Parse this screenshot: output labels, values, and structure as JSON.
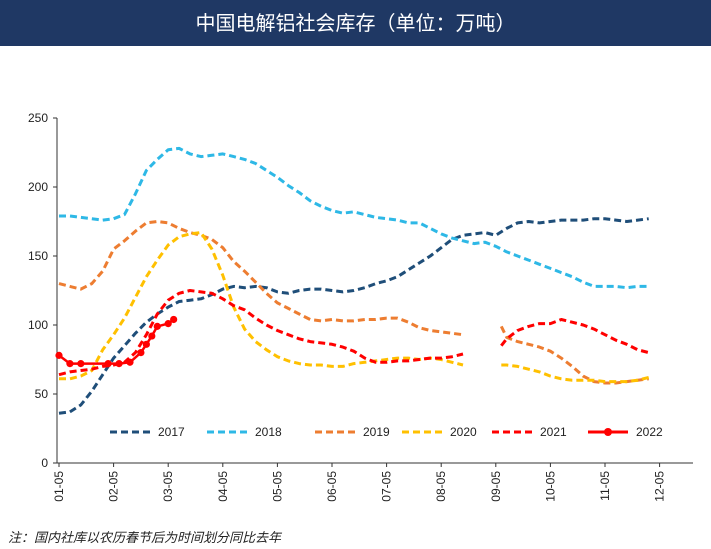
{
  "title": "中国电解铝社会库存（单位：万吨）",
  "note": "注：国内社库以农历春节后为时间划分同比去年",
  "colors": {
    "header_bg": "#1f3864"
  },
  "chart_data": {
    "type": "line",
    "title": "中国电解铝社会库存（单位：万吨）",
    "xlabel": "",
    "ylabel": "",
    "ylim": [
      0,
      250
    ],
    "yticks": [
      0,
      50,
      100,
      150,
      200,
      250
    ],
    "x_tick_labels": [
      "01-05",
      "02-05",
      "03-05",
      "04-05",
      "05-05",
      "06-05",
      "07-05",
      "08-05",
      "09-05",
      "10-05",
      "11-05",
      "12-05"
    ],
    "grid": false,
    "legend_position": "bottom-inside",
    "series": [
      {
        "name": "2017",
        "color": "#1f4e79",
        "style": "dashed",
        "points": [
          [
            0,
            36
          ],
          [
            0.2,
            37
          ],
          [
            0.4,
            42
          ],
          [
            0.6,
            52
          ],
          [
            0.8,
            64
          ],
          [
            1.0,
            76
          ],
          [
            1.2,
            85
          ],
          [
            1.4,
            94
          ],
          [
            1.6,
            102
          ],
          [
            1.8,
            108
          ],
          [
            2.0,
            113
          ],
          [
            2.2,
            117
          ],
          [
            2.4,
            118
          ],
          [
            2.6,
            119
          ],
          [
            2.8,
            122
          ],
          [
            3.0,
            126
          ],
          [
            3.2,
            128
          ],
          [
            3.4,
            127
          ],
          [
            3.6,
            128
          ],
          [
            3.8,
            127
          ],
          [
            4.0,
            124
          ],
          [
            4.2,
            123
          ],
          [
            4.4,
            125
          ],
          [
            4.6,
            126
          ],
          [
            4.8,
            126
          ],
          [
            5.0,
            125
          ],
          [
            5.2,
            124
          ],
          [
            5.4,
            125
          ],
          [
            5.6,
            127
          ],
          [
            5.8,
            130
          ],
          [
            6.0,
            132
          ],
          [
            6.2,
            135
          ],
          [
            6.4,
            140
          ],
          [
            6.6,
            145
          ],
          [
            6.8,
            150
          ],
          [
            7.0,
            156
          ],
          [
            7.2,
            162
          ],
          [
            7.4,
            165
          ],
          [
            7.6,
            166
          ],
          [
            7.8,
            167
          ],
          [
            8.0,
            165
          ],
          [
            8.2,
            170
          ],
          [
            8.4,
            174
          ],
          [
            8.6,
            175
          ],
          [
            8.8,
            174
          ],
          [
            9.0,
            175
          ],
          [
            9.2,
            176
          ],
          [
            9.4,
            176
          ],
          [
            9.6,
            176
          ],
          [
            9.8,
            177
          ],
          [
            10.0,
            177
          ],
          [
            10.2,
            176
          ],
          [
            10.4,
            175
          ],
          [
            10.6,
            176
          ],
          [
            10.8,
            177
          ]
        ]
      },
      {
        "name": "2018",
        "color": "#2eb8e6",
        "style": "dashed",
        "points": [
          [
            0,
            179
          ],
          [
            0.2,
            179
          ],
          [
            0.4,
            178
          ],
          [
            0.6,
            177
          ],
          [
            0.8,
            176
          ],
          [
            1.0,
            177
          ],
          [
            1.2,
            180
          ],
          [
            1.4,
            195
          ],
          [
            1.6,
            212
          ],
          [
            1.8,
            220
          ],
          [
            2.0,
            227
          ],
          [
            2.2,
            228
          ],
          [
            2.4,
            224
          ],
          [
            2.6,
            222
          ],
          [
            2.8,
            223
          ],
          [
            3.0,
            224
          ],
          [
            3.2,
            222
          ],
          [
            3.4,
            220
          ],
          [
            3.6,
            217
          ],
          [
            3.8,
            212
          ],
          [
            4.0,
            207
          ],
          [
            4.2,
            201
          ],
          [
            4.4,
            196
          ],
          [
            4.6,
            190
          ],
          [
            4.8,
            186
          ],
          [
            5.0,
            183
          ],
          [
            5.2,
            181
          ],
          [
            5.4,
            182
          ],
          [
            5.6,
            180
          ],
          [
            5.8,
            178
          ],
          [
            6.0,
            177
          ],
          [
            6.2,
            176
          ],
          [
            6.4,
            174
          ],
          [
            6.6,
            174
          ],
          [
            6.8,
            170
          ],
          [
            7.0,
            166
          ],
          [
            7.2,
            163
          ],
          [
            7.4,
            161
          ],
          [
            7.6,
            159
          ],
          [
            7.8,
            160
          ],
          [
            8.0,
            157
          ],
          [
            8.2,
            153
          ],
          [
            8.4,
            150
          ],
          [
            8.6,
            147
          ],
          [
            8.8,
            144
          ],
          [
            9.0,
            141
          ],
          [
            9.2,
            138
          ],
          [
            9.4,
            135
          ],
          [
            9.6,
            131
          ],
          [
            9.8,
            128
          ],
          [
            10.0,
            128
          ],
          [
            10.2,
            128
          ],
          [
            10.4,
            127
          ],
          [
            10.6,
            128
          ],
          [
            10.8,
            128
          ]
        ]
      },
      {
        "name": "2019",
        "color": "#ed7d31",
        "style": "dashed",
        "segments": [
          [
            [
              0,
              130
            ],
            [
              0.2,
              128
            ],
            [
              0.4,
              126
            ],
            [
              0.6,
              130
            ],
            [
              0.8,
              139
            ],
            [
              1.0,
              155
            ],
            [
              1.2,
              161
            ],
            [
              1.4,
              168
            ],
            [
              1.6,
              174
            ],
            [
              1.8,
              175
            ],
            [
              2.0,
              174
            ],
            [
              2.2,
              170
            ],
            [
              2.4,
              167
            ],
            [
              2.6,
              165
            ],
            [
              2.8,
              162
            ],
            [
              3.0,
              156
            ],
            [
              3.2,
              146
            ],
            [
              3.4,
              139
            ],
            [
              3.6,
              131
            ],
            [
              3.8,
              123
            ],
            [
              4.0,
              116
            ],
            [
              4.2,
              112
            ],
            [
              4.4,
              108
            ],
            [
              4.6,
              104
            ],
            [
              4.8,
              103
            ],
            [
              5.0,
              104
            ],
            [
              5.2,
              103
            ],
            [
              5.4,
              103
            ],
            [
              5.6,
              104
            ],
            [
              5.8,
              104
            ],
            [
              6.0,
              105
            ],
            [
              6.2,
              105
            ],
            [
              6.4,
              102
            ],
            [
              6.6,
              98
            ],
            [
              6.8,
              96
            ],
            [
              7.0,
              95
            ],
            [
              7.2,
              94
            ],
            [
              7.4,
              93
            ]
          ],
          [
            [
              8.1,
              99
            ],
            [
              8.2,
              91
            ],
            [
              8.4,
              88
            ],
            [
              8.6,
              86
            ],
            [
              8.8,
              84
            ],
            [
              9.0,
              81
            ],
            [
              9.2,
              76
            ],
            [
              9.4,
              70
            ],
            [
              9.6,
              63
            ],
            [
              9.8,
              59
            ],
            [
              10.0,
              58
            ],
            [
              10.2,
              58
            ],
            [
              10.4,
              59
            ],
            [
              10.6,
              60
            ],
            [
              10.8,
              61
            ]
          ]
        ]
      },
      {
        "name": "2020",
        "color": "#ffc000",
        "style": "dashed",
        "segments": [
          [
            [
              0,
              61
            ],
            [
              0.2,
              61
            ],
            [
              0.4,
              63
            ],
            [
              0.6,
              67
            ],
            [
              0.8,
              82
            ],
            [
              1.0,
              93
            ],
            [
              1.2,
              105
            ],
            [
              1.4,
              120
            ],
            [
              1.6,
              135
            ],
            [
              1.8,
              147
            ],
            [
              2.0,
              158
            ],
            [
              2.2,
              164
            ],
            [
              2.4,
              166
            ],
            [
              2.6,
              167
            ],
            [
              2.8,
              155
            ],
            [
              3.0,
              136
            ],
            [
              3.2,
              113
            ],
            [
              3.4,
              97
            ],
            [
              3.6,
              88
            ],
            [
              3.8,
              82
            ],
            [
              4.0,
              77
            ],
            [
              4.2,
              74
            ],
            [
              4.4,
              72
            ],
            [
              4.6,
              71
            ],
            [
              4.8,
              71
            ],
            [
              5.0,
              70
            ],
            [
              5.2,
              70
            ],
            [
              5.4,
              72
            ],
            [
              5.6,
              73
            ],
            [
              5.8,
              74
            ],
            [
              6.0,
              75
            ],
            [
              6.2,
              76
            ],
            [
              6.4,
              76
            ],
            [
              6.6,
              75
            ],
            [
              6.8,
              76
            ],
            [
              7.0,
              75
            ],
            [
              7.2,
              73
            ],
            [
              7.4,
              71
            ]
          ],
          [
            [
              8.1,
              71
            ],
            [
              8.2,
              71
            ],
            [
              8.4,
              70
            ],
            [
              8.6,
              68
            ],
            [
              8.8,
              66
            ],
            [
              9.0,
              63
            ],
            [
              9.2,
              61
            ],
            [
              9.4,
              60
            ],
            [
              9.6,
              60
            ],
            [
              9.8,
              60
            ],
            [
              10.0,
              59
            ],
            [
              10.2,
              59
            ],
            [
              10.4,
              59
            ],
            [
              10.6,
              60
            ],
            [
              10.8,
              62
            ]
          ]
        ]
      },
      {
        "name": "2021",
        "color": "#ff0000",
        "style": "dashed",
        "segments": [
          [
            [
              0,
              64
            ],
            [
              0.2,
              66
            ],
            [
              0.4,
              67
            ],
            [
              0.6,
              68
            ],
            [
              0.8,
              70
            ],
            [
              1.0,
              71
            ],
            [
              1.2,
              73
            ],
            [
              1.4,
              80
            ],
            [
              1.6,
              93
            ],
            [
              1.8,
              108
            ],
            [
              2.0,
              118
            ],
            [
              2.2,
              123
            ],
            [
              2.4,
              125
            ],
            [
              2.6,
              124
            ],
            [
              2.8,
              123
            ],
            [
              3.0,
              119
            ],
            [
              3.2,
              114
            ],
            [
              3.4,
              111
            ],
            [
              3.6,
              105
            ],
            [
              3.8,
              100
            ],
            [
              4.0,
              96
            ],
            [
              4.2,
              93
            ],
            [
              4.4,
              90
            ],
            [
              4.6,
              88
            ],
            [
              4.8,
              87
            ],
            [
              5.0,
              86
            ],
            [
              5.2,
              84
            ],
            [
              5.4,
              81
            ],
            [
              5.6,
              76
            ],
            [
              5.8,
              73
            ],
            [
              6.0,
              73
            ],
            [
              6.2,
              74
            ],
            [
              6.4,
              74
            ],
            [
              6.6,
              75
            ],
            [
              6.8,
              76
            ],
            [
              7.0,
              76
            ],
            [
              7.2,
              77
            ],
            [
              7.4,
              79
            ]
          ],
          [
            [
              8.1,
              85
            ],
            [
              8.2,
              90
            ],
            [
              8.4,
              96
            ],
            [
              8.6,
              99
            ],
            [
              8.8,
              101
            ],
            [
              9.0,
              101
            ],
            [
              9.2,
              104
            ],
            [
              9.4,
              102
            ],
            [
              9.6,
              100
            ],
            [
              9.8,
              97
            ],
            [
              10.0,
              93
            ],
            [
              10.2,
              89
            ],
            [
              10.4,
              86
            ],
            [
              10.6,
              82
            ],
            [
              10.8,
              80
            ]
          ]
        ]
      },
      {
        "name": "2022",
        "color": "#ff0000",
        "style": "solid-markers",
        "points": [
          [
            0,
            78
          ],
          [
            0.2,
            72
          ],
          [
            0.4,
            72
          ],
          [
            0.9,
            72
          ],
          [
            1.1,
            72
          ],
          [
            1.3,
            73
          ],
          [
            1.5,
            80
          ],
          [
            1.6,
            86
          ],
          [
            1.7,
            92
          ],
          [
            1.8,
            99
          ],
          [
            2.0,
            101
          ],
          [
            2.1,
            104
          ]
        ]
      }
    ]
  }
}
